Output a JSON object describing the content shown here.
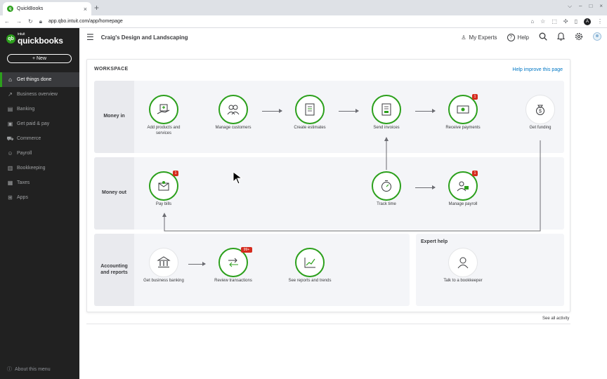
{
  "browser": {
    "tab_title": "QuickBooks",
    "tab_close": "×",
    "new_tab": "+",
    "url": "app.qbo.intuit.com/app/homepage",
    "profile_initial": "A",
    "win_controls": [
      "⌵",
      "–",
      "□",
      "×"
    ]
  },
  "sidebar": {
    "brand_top": "intuit",
    "brand_name": "quickbooks",
    "new_button": "+ New",
    "items": [
      {
        "label": "Get things done",
        "icon": "home-icon",
        "glyph": "⌂"
      },
      {
        "label": "Business overview",
        "icon": "chart-icon",
        "glyph": "↗"
      },
      {
        "label": "Banking",
        "icon": "bank-icon",
        "glyph": "▤"
      },
      {
        "label": "Get paid & pay",
        "icon": "money-icon",
        "glyph": "▣"
      },
      {
        "label": "Commerce",
        "icon": "cart-icon",
        "glyph": "⛟"
      },
      {
        "label": "Payroll",
        "icon": "people-icon",
        "glyph": "☺"
      },
      {
        "label": "Bookkeeping",
        "icon": "book-icon",
        "glyph": "▥"
      },
      {
        "label": "Taxes",
        "icon": "tax-icon",
        "glyph": "▦"
      },
      {
        "label": "Apps",
        "icon": "apps-icon",
        "glyph": "⊞"
      }
    ],
    "about": "About this menu"
  },
  "header": {
    "company": "Craig's Design and Landscaping",
    "experts": "My Experts",
    "help": "Help"
  },
  "workspace": {
    "title": "WORKSPACE",
    "help_link": "Help improve this page",
    "lanes": {
      "money_in": "Money in",
      "money_out": "Money out",
      "accounting": "Accounting and reports",
      "expert": "Expert help"
    },
    "nodes": {
      "add_products": "Add products and services",
      "manage_customers": "Manage customers",
      "create_estimates": "Create estimates",
      "send_invoices": "Send invoices",
      "receive_payments": "Receive payments",
      "get_funding": "Get funding",
      "pay_bills": "Pay bills",
      "track_time": "Track time",
      "manage_payroll": "Manage payroll",
      "get_banking": "Get business banking",
      "review_transactions": "Review transactions",
      "see_reports": "See reports and trends",
      "talk_bookkeeper": "Talk to a bookkeeper"
    },
    "badges": {
      "receive_payments": "1",
      "pay_bills": "1",
      "manage_payroll": "1",
      "review_transactions": "99+"
    },
    "see_all": "See all activity"
  },
  "colors": {
    "accent": "#2ca01c",
    "sidebar_bg": "#212121",
    "badge": "#d52b1e",
    "link": "#0077c5"
  }
}
